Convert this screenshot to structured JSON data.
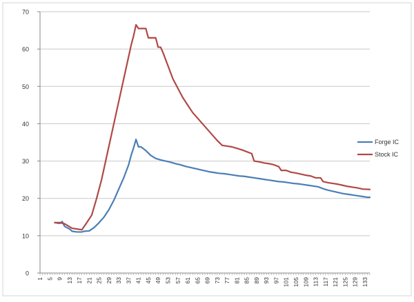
{
  "chart_data": {
    "type": "line",
    "title": "",
    "xlabel": "",
    "ylabel": "",
    "x_start": 1,
    "x_end": 135,
    "x_tick_labels": [
      "1",
      "5",
      "9",
      "13",
      "17",
      "21",
      "25",
      "29",
      "33",
      "37",
      "41",
      "45",
      "49",
      "53",
      "57",
      "61",
      "65",
      "69",
      "73",
      "77",
      "81",
      "85",
      "89",
      "93",
      "97",
      "101",
      "105",
      "109",
      "113",
      "117",
      "121",
      "125",
      "129",
      "133"
    ],
    "ylim": [
      0,
      70
    ],
    "y_ticks": [
      0,
      10,
      20,
      30,
      40,
      50,
      60,
      70
    ],
    "grid": "horizontal",
    "legend_position": "right",
    "series": [
      {
        "name": "Forge IC",
        "color": "#4a7eb5",
        "points": [
          [
            7,
            13.5
          ],
          [
            9,
            13.3
          ],
          [
            10,
            13.8
          ],
          [
            11,
            12.5
          ],
          [
            13,
            11.8
          ],
          [
            14,
            11.2
          ],
          [
            16,
            11
          ],
          [
            18,
            11
          ],
          [
            19,
            11.2
          ],
          [
            21,
            11.3
          ],
          [
            23,
            12.2
          ],
          [
            25,
            13.5
          ],
          [
            27,
            15
          ],
          [
            29,
            17
          ],
          [
            31,
            19.5
          ],
          [
            33,
            22.5
          ],
          [
            35,
            25.5
          ],
          [
            37,
            29
          ],
          [
            38,
            31.5
          ],
          [
            39,
            33.5
          ],
          [
            40,
            35.8
          ],
          [
            41,
            33.8
          ],
          [
            42,
            33.8
          ],
          [
            44,
            32.8
          ],
          [
            46,
            31.5
          ],
          [
            48,
            30.7
          ],
          [
            50,
            30.3
          ],
          [
            52,
            30
          ],
          [
            54,
            29.7
          ],
          [
            56,
            29.3
          ],
          [
            58,
            29
          ],
          [
            60,
            28.6
          ],
          [
            62,
            28.3
          ],
          [
            64,
            28
          ],
          [
            66,
            27.7
          ],
          [
            68,
            27.4
          ],
          [
            70,
            27.1
          ],
          [
            72,
            26.9
          ],
          [
            74,
            26.7
          ],
          [
            76,
            26.6
          ],
          [
            78,
            26.4
          ],
          [
            80,
            26.2
          ],
          [
            82,
            26
          ],
          [
            84,
            25.9
          ],
          [
            86,
            25.7
          ],
          [
            88,
            25.5
          ],
          [
            90,
            25.3
          ],
          [
            92,
            25.1
          ],
          [
            94,
            24.9
          ],
          [
            96,
            24.7
          ],
          [
            98,
            24.5
          ],
          [
            100,
            24.4
          ],
          [
            102,
            24.2
          ],
          [
            104,
            24
          ],
          [
            106,
            23.9
          ],
          [
            108,
            23.7
          ],
          [
            110,
            23.5
          ],
          [
            112,
            23.3
          ],
          [
            114,
            23.1
          ],
          [
            116,
            22.6
          ],
          [
            118,
            22.2
          ],
          [
            120,
            21.9
          ],
          [
            122,
            21.6
          ],
          [
            124,
            21.3
          ],
          [
            126,
            21.1
          ],
          [
            128,
            20.9
          ],
          [
            130,
            20.7
          ],
          [
            132,
            20.5
          ],
          [
            134,
            20.3
          ],
          [
            135,
            20.3
          ]
        ]
      },
      {
        "name": "Stock IC",
        "color": "#b04845",
        "points": [
          [
            7,
            13.5
          ],
          [
            9,
            13.5
          ],
          [
            11,
            13.2
          ],
          [
            12,
            12.8
          ],
          [
            14,
            12
          ],
          [
            16,
            11.8
          ],
          [
            18,
            11.6
          ],
          [
            20,
            13.5
          ],
          [
            22,
            15.5
          ],
          [
            24,
            20
          ],
          [
            26,
            25
          ],
          [
            28,
            31
          ],
          [
            30,
            37
          ],
          [
            32,
            43
          ],
          [
            34,
            49
          ],
          [
            36,
            55
          ],
          [
            37,
            58
          ],
          [
            38,
            61
          ],
          [
            39,
            63.5
          ],
          [
            40,
            66.5
          ],
          [
            41,
            65.5
          ],
          [
            43,
            65.5
          ],
          [
            44,
            65.5
          ],
          [
            45,
            63
          ],
          [
            46,
            63
          ],
          [
            48,
            63
          ],
          [
            49,
            60.5
          ],
          [
            50,
            60.5
          ],
          [
            51,
            59
          ],
          [
            53,
            55.5
          ],
          [
            55,
            52
          ],
          [
            57,
            49.5
          ],
          [
            59,
            47
          ],
          [
            61,
            45
          ],
          [
            63,
            43
          ],
          [
            65,
            41.5
          ],
          [
            67,
            40
          ],
          [
            69,
            38.5
          ],
          [
            71,
            37
          ],
          [
            73,
            35.5
          ],
          [
            75,
            34.2
          ],
          [
            77,
            34
          ],
          [
            79,
            33.8
          ],
          [
            81,
            33.4
          ],
          [
            83,
            33
          ],
          [
            85,
            32.5
          ],
          [
            87,
            32
          ],
          [
            88,
            30
          ],
          [
            90,
            29.8
          ],
          [
            92,
            29.5
          ],
          [
            94,
            29.3
          ],
          [
            96,
            29
          ],
          [
            98,
            28.5
          ],
          [
            99,
            27.5
          ],
          [
            101,
            27.5
          ],
          [
            103,
            27
          ],
          [
            105,
            26.8
          ],
          [
            107,
            26.5
          ],
          [
            109,
            26.2
          ],
          [
            111,
            26
          ],
          [
            113,
            25.5
          ],
          [
            115,
            25.5
          ],
          [
            116,
            24.5
          ],
          [
            118,
            24.2
          ],
          [
            120,
            24
          ],
          [
            122,
            23.8
          ],
          [
            124,
            23.5
          ],
          [
            126,
            23.2
          ],
          [
            128,
            23
          ],
          [
            130,
            22.8
          ],
          [
            132,
            22.5
          ],
          [
            135,
            22.4
          ]
        ]
      }
    ]
  }
}
